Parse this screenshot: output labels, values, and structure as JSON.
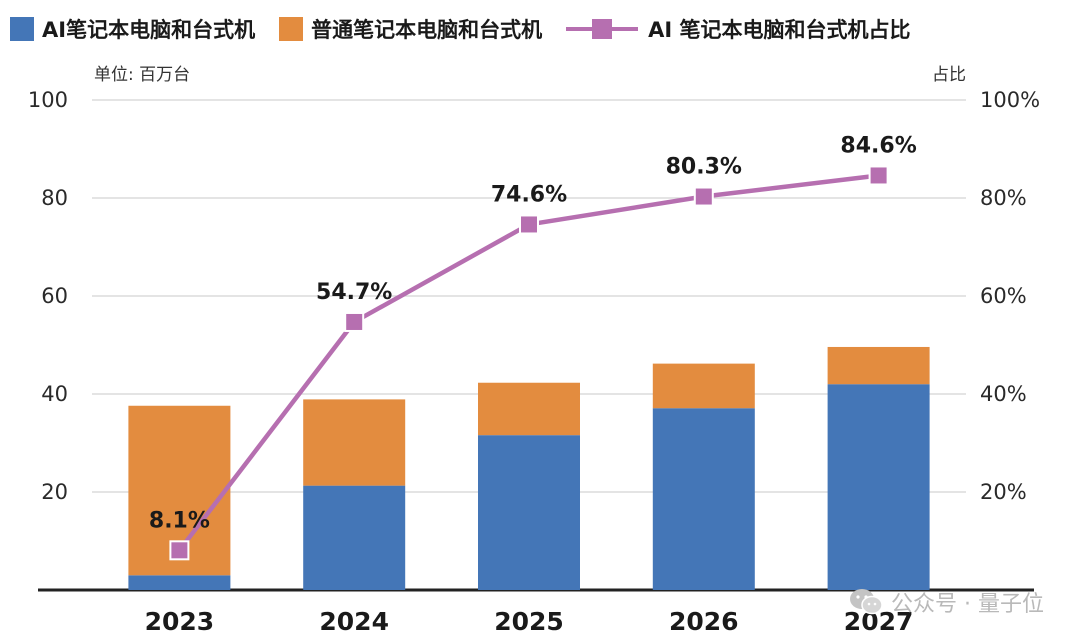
{
  "chart_data": {
    "type": "bar",
    "categories": [
      "2023",
      "2024",
      "2025",
      "2026",
      "2027"
    ],
    "series": [
      {
        "name": "AI笔记本电脑和台式机",
        "kind": "bar",
        "axis": "left",
        "values": [
          3.0,
          21.3,
          31.6,
          37.1,
          42.0
        ]
      },
      {
        "name": "普通笔记本电脑和台式机",
        "kind": "bar",
        "axis": "left",
        "values": [
          34.6,
          17.6,
          10.7,
          9.1,
          7.6
        ]
      },
      {
        "name": "AI 笔记本电脑和台式机占比",
        "kind": "line",
        "axis": "right",
        "values": [
          8.1,
          54.7,
          74.6,
          80.3,
          84.6
        ],
        "labels": [
          "8.1%",
          "54.7%",
          "74.6%",
          "80.3%",
          "84.6%"
        ]
      }
    ],
    "stacked": true,
    "ylabel": "单位: 百万台",
    "y2label": "占比",
    "ylim": [
      0,
      100
    ],
    "y2lim": [
      0,
      100
    ],
    "yticks": [
      "20",
      "40",
      "60",
      "80",
      "100"
    ],
    "y2ticks": [
      "20%",
      "40%",
      "60%",
      "80%",
      "100%"
    ],
    "grid": true,
    "legend_position": "top"
  },
  "colors": {
    "ai_bar": "#4476b7",
    "normal_bar": "#e38c3f",
    "share_line": "#b66fb0",
    "grid": "#d4d4d4",
    "axis": "#222222"
  },
  "watermark": {
    "text": "公众号 · 量子位",
    "icon": "wechat-icon"
  }
}
